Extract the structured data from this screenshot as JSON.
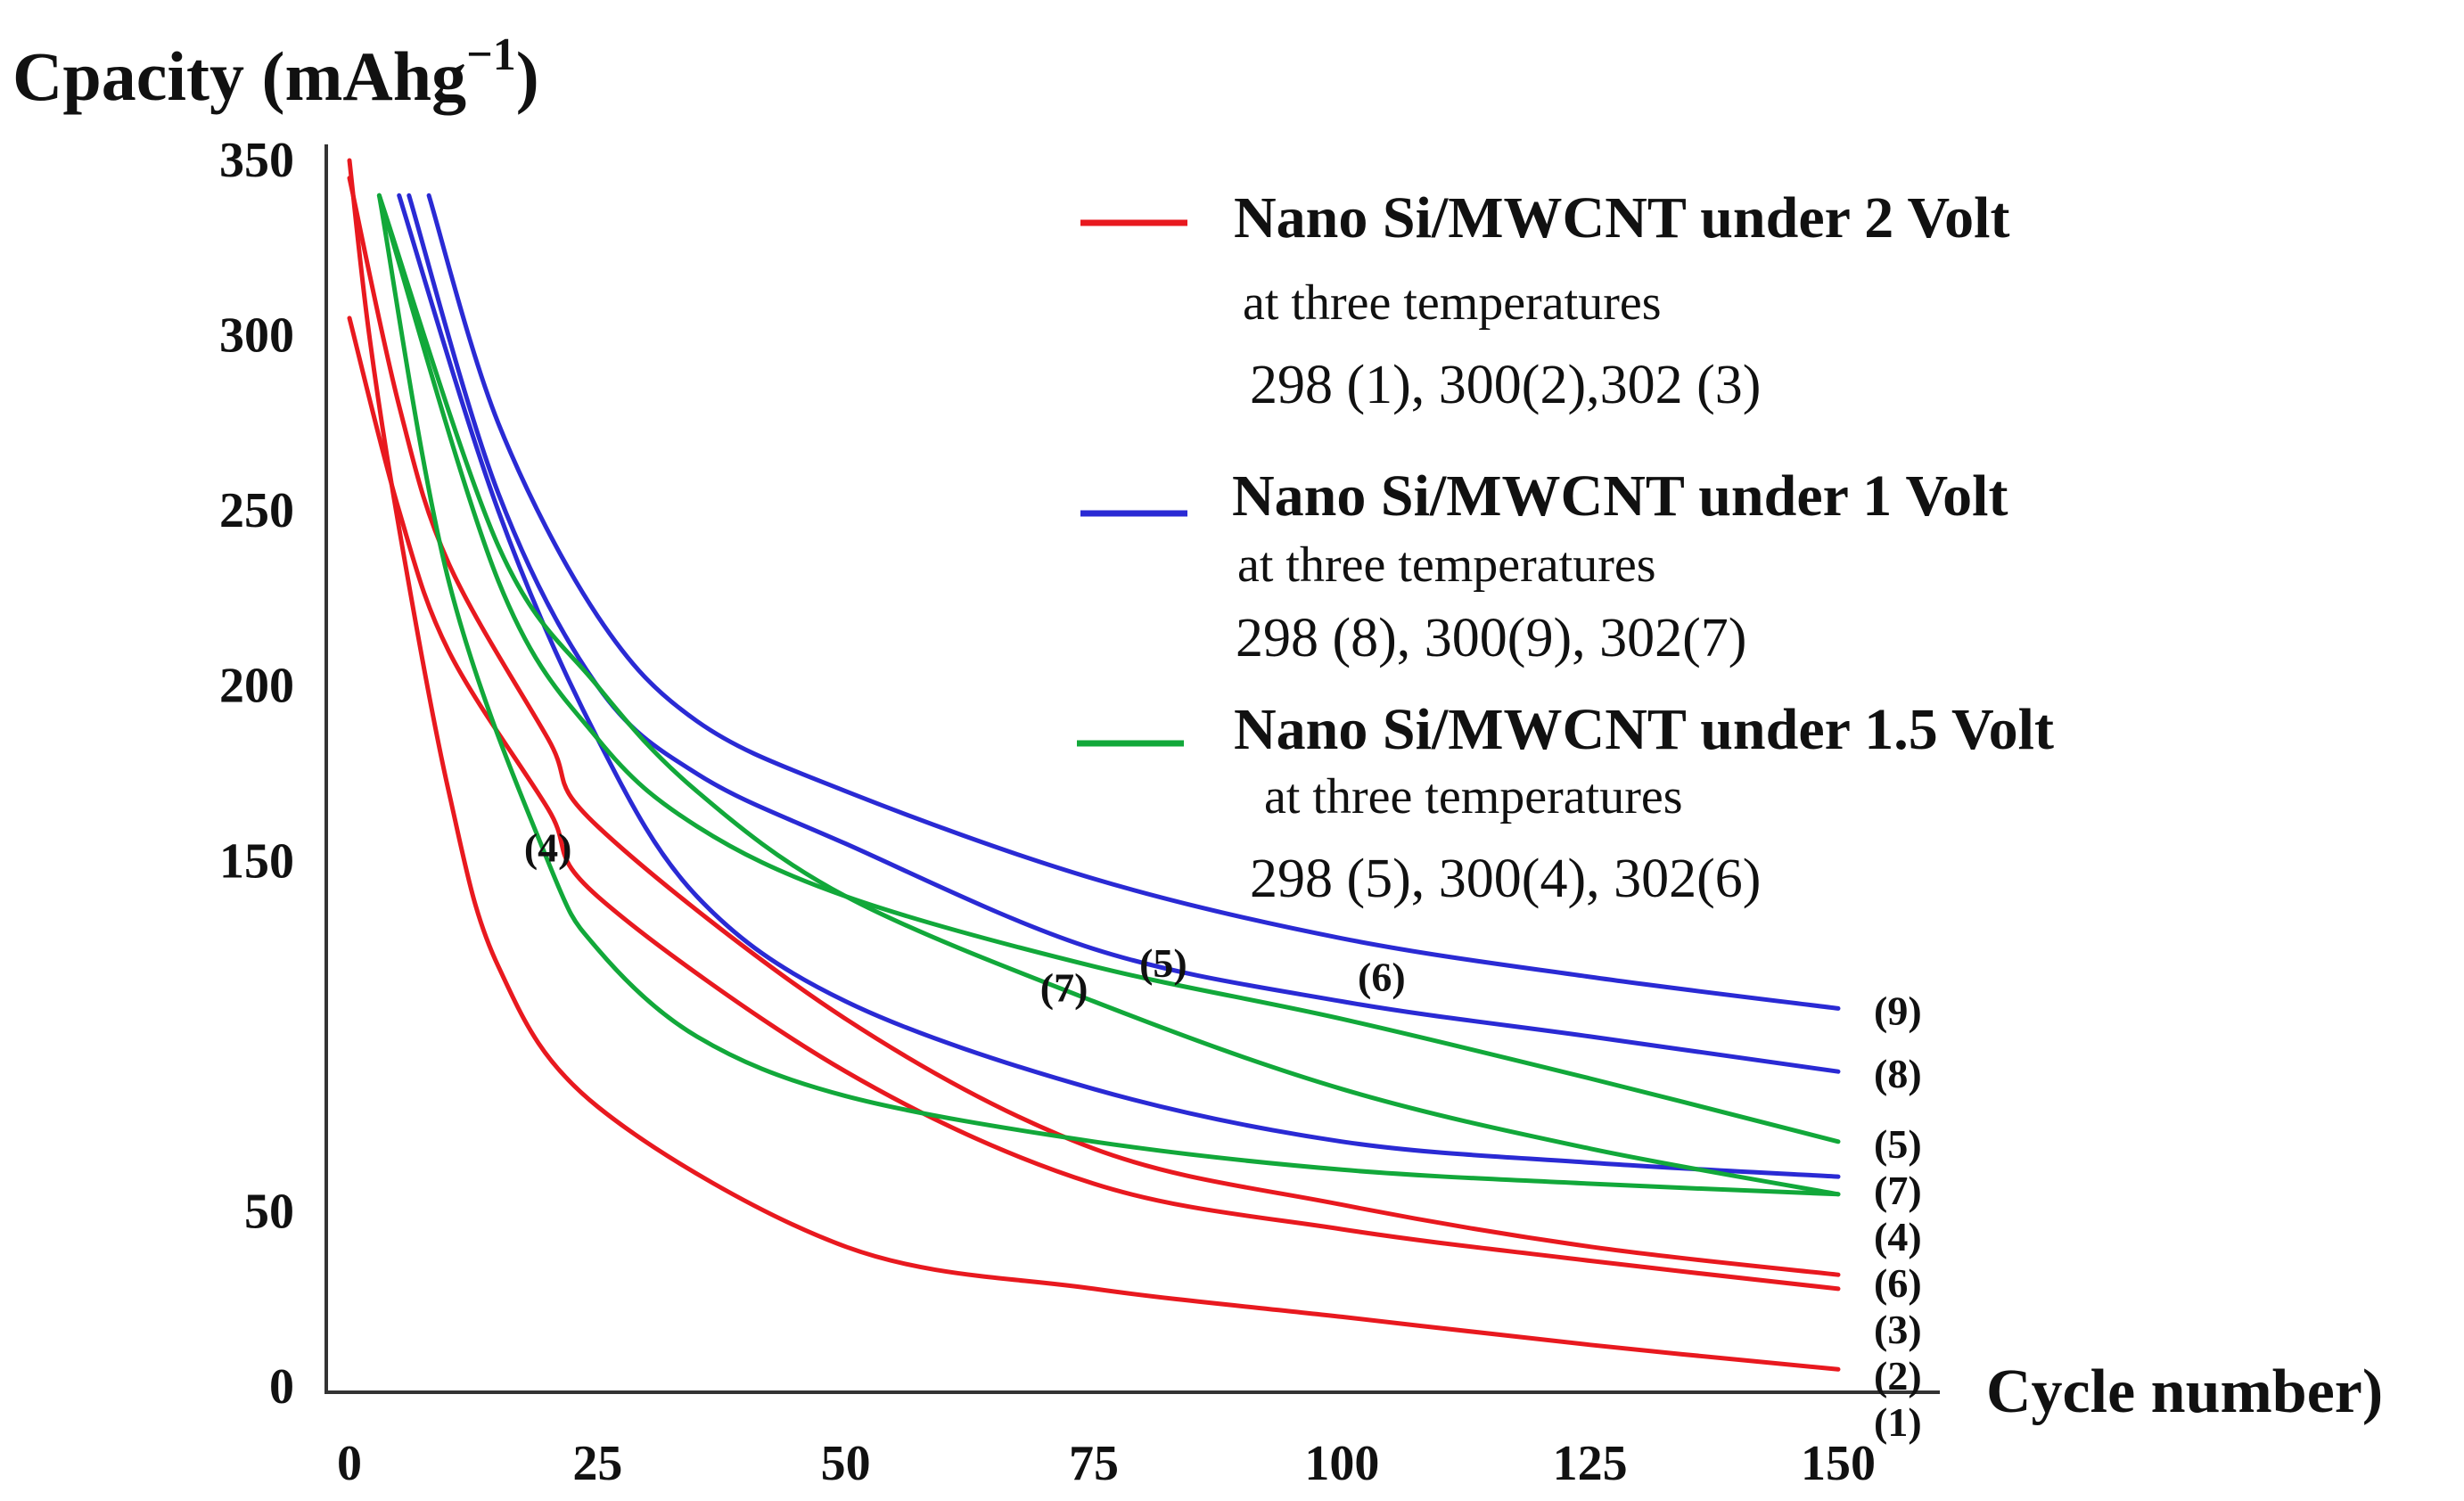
{
  "chart_data": {
    "type": "line",
    "ylabel": "Cpacity (mAhg",
    "ylabel_sup": "−1",
    "ylabel_close": ")",
    "xlabel": "Cycle number)",
    "xlim": [
      0,
      150
    ],
    "ylim": [
      0,
      350
    ],
    "xticks": [
      "0",
      "25",
      "50",
      "75",
      "100",
      "125",
      "150"
    ],
    "yticks": [
      "0",
      "50",
      "150",
      "200",
      "250",
      "300",
      "350"
    ],
    "ytick_values": [
      0,
      50,
      150,
      200,
      250,
      300,
      350
    ],
    "grid": false,
    "legend_position": "top-right",
    "legend": [
      {
        "color": "#e8191f",
        "title": "Nano Si/MWCNT under 2 Volt",
        "subtitle": "at three temperatures",
        "temps": "298 (1), 300(2),302 (3)"
      },
      {
        "color": "#2a2ad4",
        "title": "Nano Si/MWCNT under 1 Volt",
        "subtitle": "at three temperatures",
        "temps": "298 (8), 300(9), 302(7)"
      },
      {
        "color": "#12a83a",
        "title": "Nano Si/MWCNT under 1.5 Volt",
        "subtitle": "at three temperatures",
        "temps": "298 (5), 300(4), 302(6)"
      }
    ],
    "series": [
      {
        "label": "(1)",
        "color": "#e8191f",
        "x": [
          0,
          2,
          5,
          10,
          15,
          25,
          50,
          75,
          100,
          125,
          150
        ],
        "y": [
          350,
          300,
          245,
          170,
          120,
          80,
          40,
          28,
          20,
          12,
          5
        ]
      },
      {
        "label": "(2)",
        "color": "#e8191f",
        "x": [
          0,
          5,
          10,
          20,
          25,
          50,
          75,
          100,
          125,
          150
        ],
        "y": [
          305,
          250,
          210,
          165,
          140,
          90,
          58,
          45,
          36,
          28
        ]
      },
      {
        "label": "(3)",
        "color": "#e8191f",
        "x": [
          0,
          5,
          10,
          20,
          25,
          50,
          75,
          100,
          125,
          150
        ],
        "y": [
          345,
          280,
          235,
          185,
          160,
          105,
          68,
          52,
          40,
          32
        ]
      },
      {
        "label": "(9)",
        "color": "#2a2ad4",
        "x": [
          8,
          15,
          25,
          35,
          50,
          75,
          100,
          125,
          150
        ],
        "y": [
          340,
          275,
          220,
          190,
          170,
          145,
          128,
          117,
          108
        ]
      },
      {
        "label": "(8)",
        "color": "#2a2ad4",
        "x": [
          6,
          15,
          25,
          35,
          50,
          75,
          100,
          125,
          150
        ],
        "y": [
          340,
          255,
          200,
          175,
          155,
          125,
          110,
          100,
          90
        ]
      },
      {
        "label": "(7)",
        "color": "#2a2ad4",
        "x": [
          5,
          15,
          25,
          35,
          50,
          75,
          100,
          125,
          150
        ],
        "y": [
          340,
          250,
          185,
          140,
          110,
          85,
          70,
          64,
          60
        ]
      },
      {
        "label": "(5)",
        "color": "#12a83a",
        "x": [
          3,
          15,
          25,
          35,
          50,
          75,
          100,
          125,
          150
        ],
        "y": [
          340,
          230,
          185,
          160,
          140,
          120,
          105,
          88,
          70
        ]
      },
      {
        "label": "(4)",
        "color": "#12a83a",
        "x": [
          3,
          10,
          20,
          25,
          35,
          50,
          75,
          100,
          125,
          150
        ],
        "y": [
          340,
          230,
          150,
          125,
          100,
          83,
          70,
          62,
          58,
          55
        ]
      },
      {
        "label": "(6)",
        "color": "#12a83a",
        "x": [
          3,
          15,
          25,
          35,
          50,
          75,
          100,
          125,
          150
        ],
        "y": [
          340,
          240,
          200,
          170,
          140,
          110,
          85,
          68,
          55
        ]
      }
    ],
    "annotations": [
      {
        "text": "(4)",
        "x": 20,
        "y": 150
      },
      {
        "text": "(7)",
        "x": 72,
        "y": 110
      },
      {
        "text": "(5)",
        "x": 82,
        "y": 117
      },
      {
        "text": "(6)",
        "x": 104,
        "y": 113
      }
    ]
  }
}
